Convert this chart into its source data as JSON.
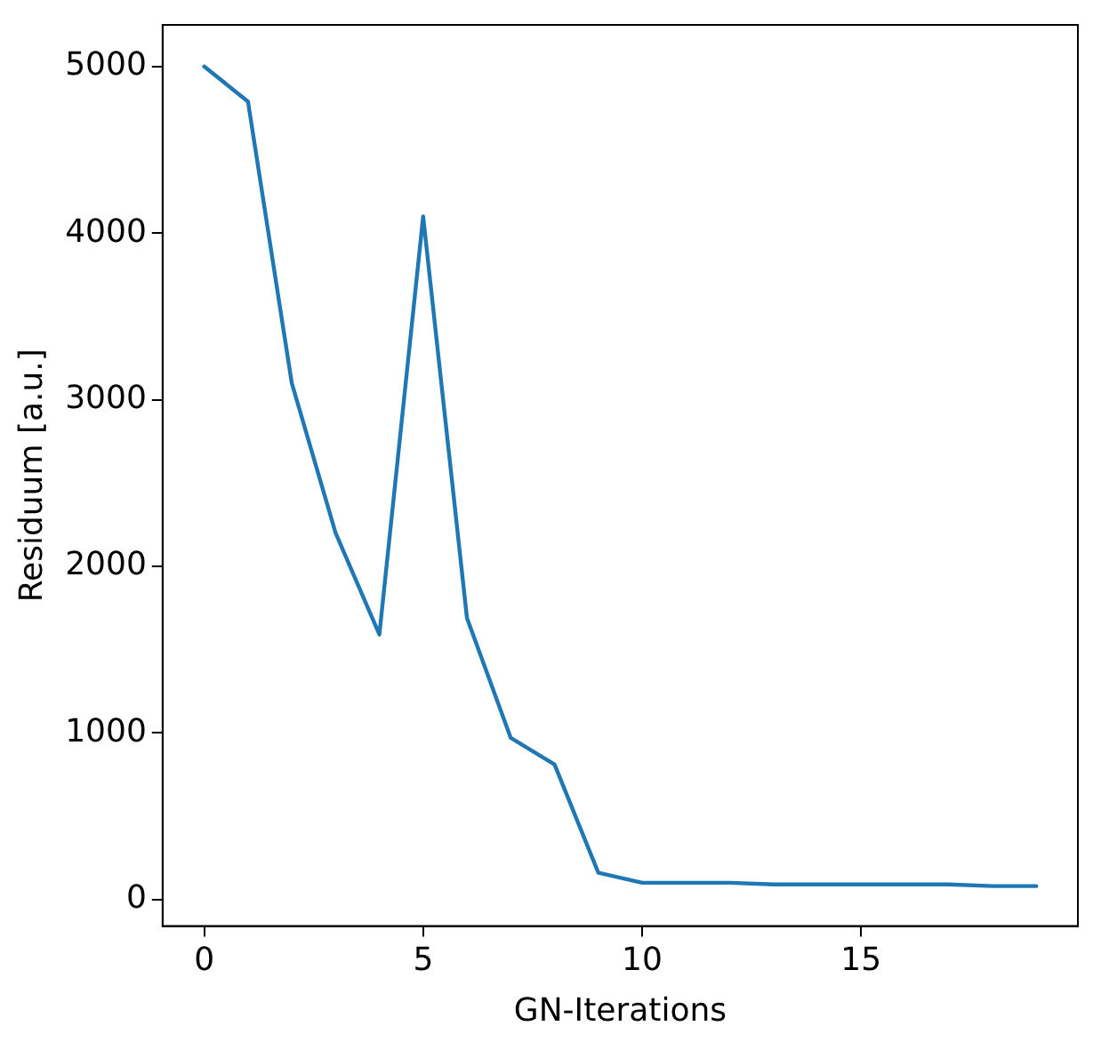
{
  "chart_data": {
    "type": "line",
    "xlabel": "GN-Iterations",
    "ylabel": "Residuum [a.u.]",
    "x": [
      0,
      1,
      2,
      3,
      4,
      5,
      6,
      7,
      8,
      9,
      10,
      11,
      12,
      13,
      14,
      15,
      16,
      17,
      18,
      19
    ],
    "series": [
      {
        "color": "#1f77b4",
        "values": [
          5000,
          4790,
          3100,
          2200,
          1590,
          4100,
          1690,
          970,
          810,
          160,
          100,
          100,
          100,
          90,
          90,
          90,
          90,
          90,
          80,
          80
        ]
      }
    ],
    "xlim": [
      -0.95,
      19.95
    ],
    "xticks": [
      0,
      5,
      10,
      15
    ],
    "ylim": [
      -160,
      5250
    ],
    "yticks": [
      0,
      1000,
      2000,
      3000,
      4000,
      5000
    ],
    "grid": false,
    "legend": false,
    "marker": "none",
    "line_style": "solid"
  }
}
